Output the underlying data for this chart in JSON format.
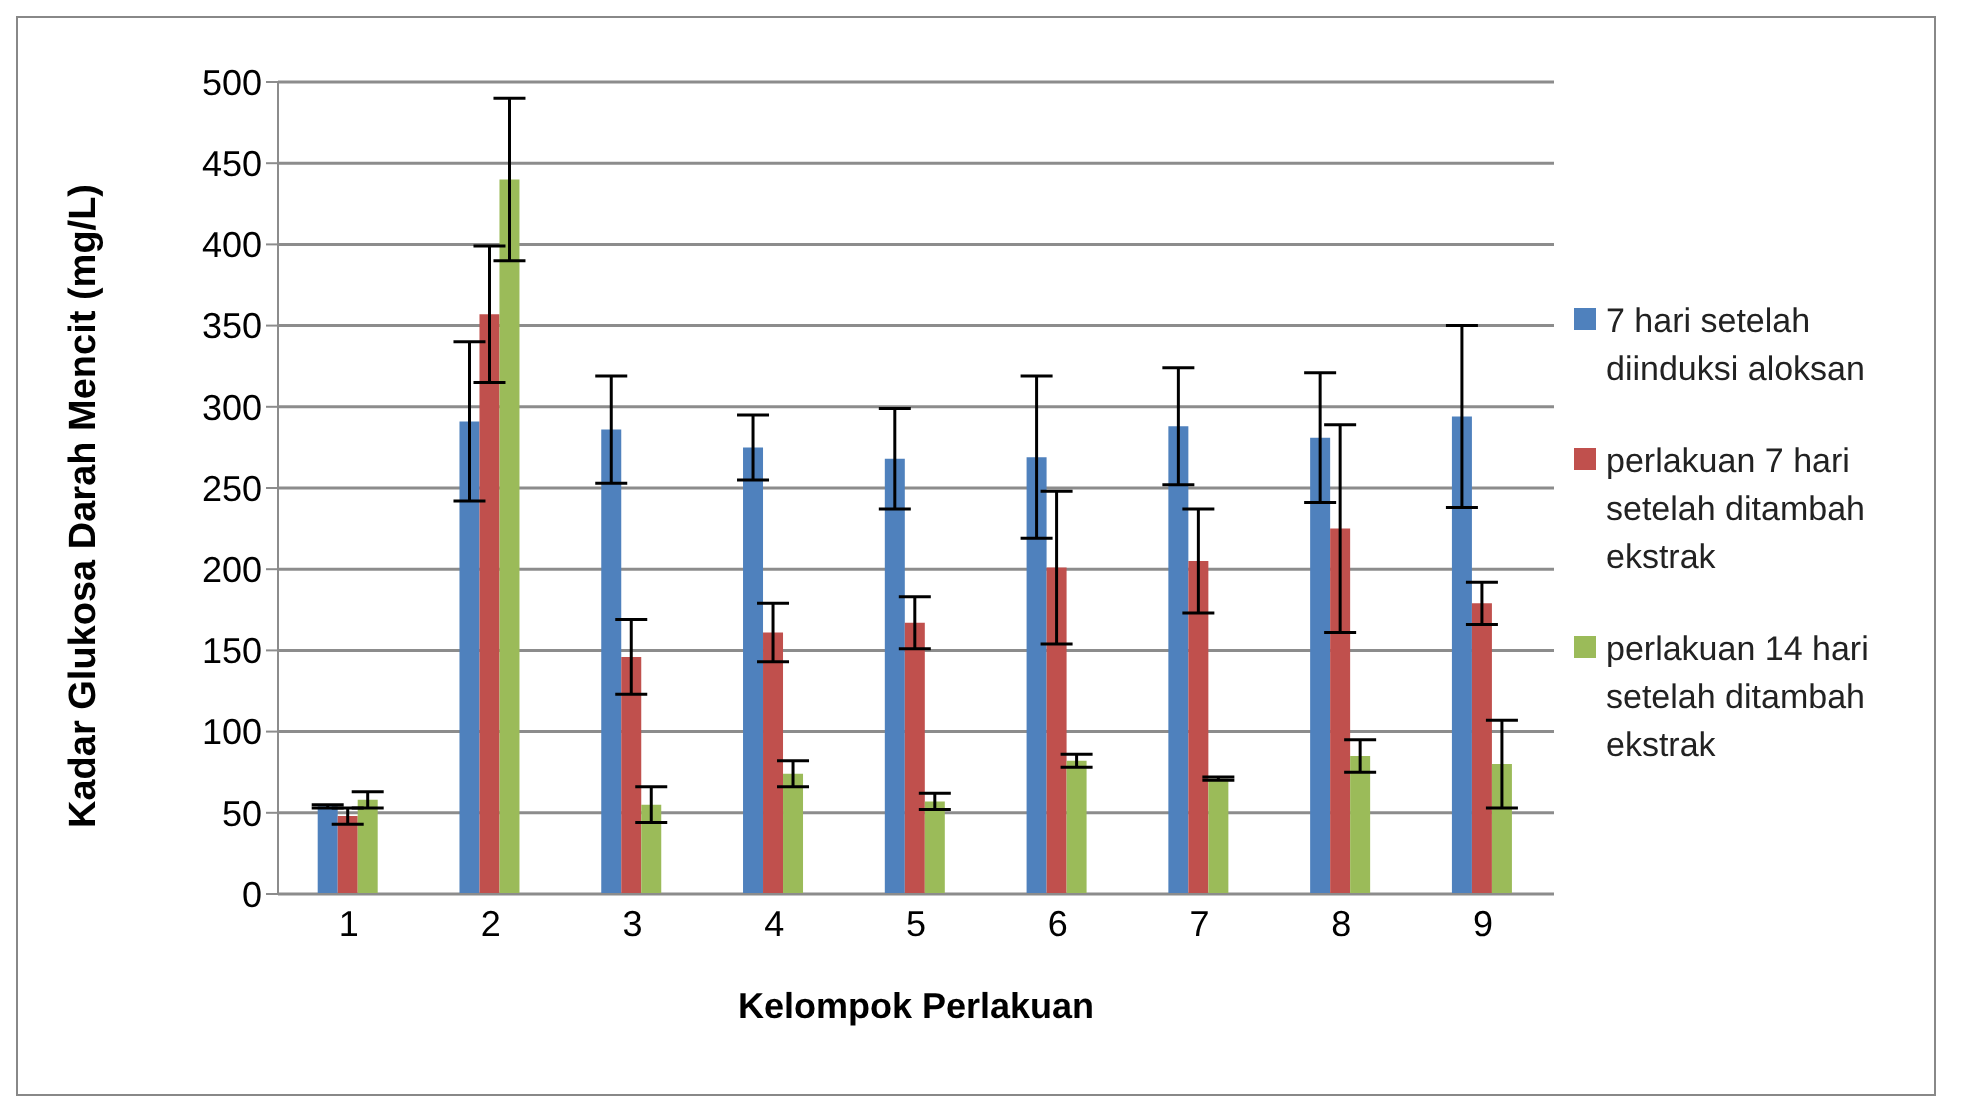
{
  "chart_data": {
    "type": "bar",
    "xlabel": "Kelompok Perlakuan",
    "ylabel": "Kadar Glukosa Darah Mencit (mg/L)",
    "categories": [
      "1",
      "2",
      "3",
      "4",
      "5",
      "6",
      "7",
      "8",
      "9"
    ],
    "series": [
      {
        "name": "7 hari setelah diinduksi aloksan",
        "color": "#4f81bd",
        "values": [
          54,
          291,
          286,
          275,
          268,
          269,
          288,
          281,
          294
        ],
        "errors": [
          1,
          49,
          33,
          20,
          31,
          50,
          36,
          40,
          56
        ]
      },
      {
        "name": "perlakuan 7 hari setelah ditambah ekstrak",
        "color": "#c0504d",
        "values": [
          48,
          357,
          146,
          161,
          167,
          201,
          205,
          225,
          179
        ],
        "errors": [
          5,
          42,
          23,
          18,
          16,
          47,
          32,
          64,
          13
        ]
      },
      {
        "name": "perlakuan 14 hari setelah ditambah ekstrak",
        "color": "#9bbb59",
        "values": [
          58,
          440,
          55,
          74,
          57,
          82,
          71,
          85,
          80
        ],
        "errors": [
          5,
          50,
          11,
          8,
          5,
          4,
          1,
          10,
          27
        ]
      }
    ],
    "ylim": [
      0,
      500
    ],
    "yticks": [
      0,
      50,
      100,
      150,
      200,
      250,
      300,
      350,
      400,
      450,
      500
    ],
    "grid": "y",
    "legend": "right"
  }
}
